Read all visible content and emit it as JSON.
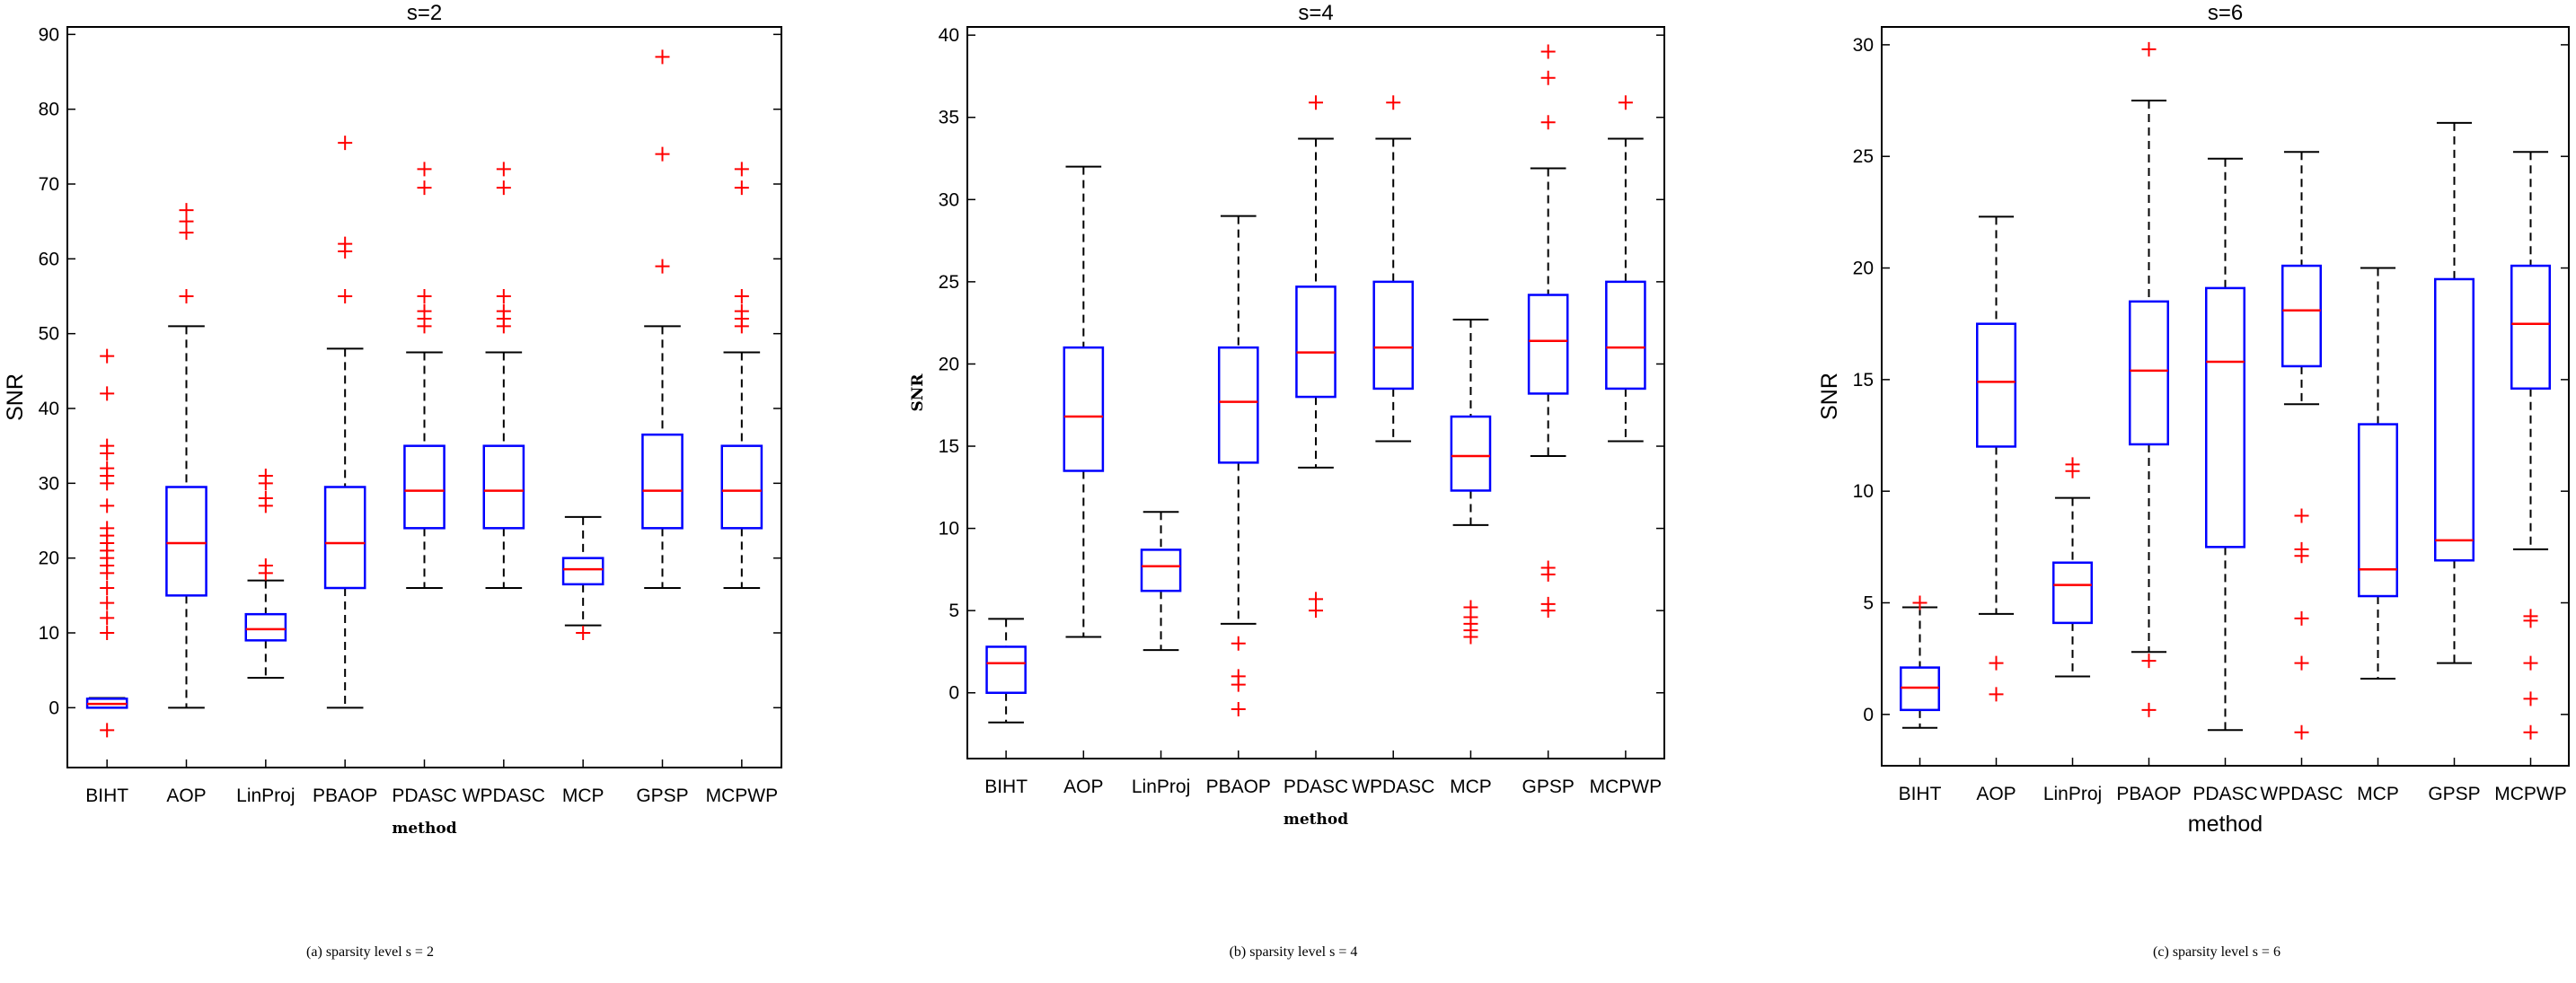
{
  "chart_data": [
    {
      "type": "boxplot",
      "title": "s=2",
      "xlabel": "method",
      "ylabel": "SNR",
      "xlabel_style": "serif",
      "ylabel_style": "sans",
      "ylim": [
        -8,
        91
      ],
      "yticks": [
        0,
        10,
        20,
        30,
        40,
        50,
        60,
        70,
        80,
        90
      ],
      "categories": [
        "BIHT",
        "AOP",
        "LinProj",
        "PBAOP",
        "PDASC",
        "WPDASC",
        "MCP",
        "GPSP",
        "MCPWP"
      ],
      "boxes": [
        {
          "min": 0,
          "q1": 0,
          "median": 0.5,
          "q3": 1.2,
          "max": 1.3,
          "outliers": [
            -3,
            10,
            12,
            14,
            16,
            18,
            19,
            20,
            21,
            22,
            23,
            24,
            27,
            30,
            31,
            32,
            34,
            35,
            42,
            47
          ]
        },
        {
          "min": 0,
          "q1": 15,
          "median": 22,
          "q3": 29.5,
          "max": 51,
          "outliers": [
            55,
            63.5,
            65,
            66.5
          ]
        },
        {
          "min": 4,
          "q1": 9,
          "median": 10.5,
          "q3": 12.5,
          "max": 17,
          "outliers": [
            18,
            19,
            27,
            28,
            30,
            31
          ]
        },
        {
          "min": 0,
          "q1": 16,
          "median": 22,
          "q3": 29.5,
          "max": 48,
          "outliers": [
            55,
            61,
            62,
            75.5
          ]
        },
        {
          "min": 16,
          "q1": 24,
          "median": 29,
          "q3": 35,
          "max": 47.5,
          "outliers": [
            51,
            52,
            53,
            55,
            69.5,
            72
          ]
        },
        {
          "min": 16,
          "q1": 24,
          "median": 29,
          "q3": 35,
          "max": 47.5,
          "outliers": [
            51,
            52,
            53,
            55,
            69.5,
            72
          ]
        },
        {
          "min": 11,
          "q1": 16.5,
          "median": 18.5,
          "q3": 20,
          "max": 25.5,
          "outliers": [
            10
          ]
        },
        {
          "min": 16,
          "q1": 24,
          "median": 29,
          "q3": 36.5,
          "max": 51,
          "outliers": [
            59,
            74,
            87
          ]
        },
        {
          "min": 16,
          "q1": 24,
          "median": 29,
          "q3": 35,
          "max": 47.5,
          "outliers": [
            51,
            52,
            53,
            55,
            69.5,
            72
          ]
        }
      ]
    },
    {
      "type": "boxplot",
      "title": "s=4",
      "xlabel": "method",
      "ylabel": "SNR",
      "xlabel_style": "serif",
      "ylabel_style": "serif",
      "ylim": [
        -4,
        40.5
      ],
      "yticks": [
        0,
        5,
        10,
        15,
        20,
        25,
        30,
        35,
        40
      ],
      "categories": [
        "BIHT",
        "AOP",
        "LinProj",
        "PBAOP",
        "PDASC",
        "WPDASC",
        "MCP",
        "GPSP",
        "MCPWP"
      ],
      "boxes": [
        {
          "min": -1.8,
          "q1": 0,
          "median": 1.8,
          "q3": 2.8,
          "max": 4.5,
          "outliers": []
        },
        {
          "min": 3.4,
          "q1": 13.5,
          "median": 16.8,
          "q3": 21,
          "max": 32,
          "outliers": []
        },
        {
          "min": 2.6,
          "q1": 6.2,
          "median": 7.7,
          "q3": 8.7,
          "max": 11,
          "outliers": []
        },
        {
          "min": 4.2,
          "q1": 14,
          "median": 17.7,
          "q3": 21,
          "max": 29,
          "outliers": [
            -1,
            0.5,
            1,
            3
          ]
        },
        {
          "min": 13.7,
          "q1": 18,
          "median": 20.7,
          "q3": 24.7,
          "max": 33.7,
          "outliers": [
            5,
            5.7,
            35.9
          ]
        },
        {
          "min": 15.3,
          "q1": 18.5,
          "median": 21,
          "q3": 25,
          "max": 33.7,
          "outliers": [
            35.9
          ]
        },
        {
          "min": 10.2,
          "q1": 12.3,
          "median": 14.4,
          "q3": 16.8,
          "max": 22.7,
          "outliers": [
            3.4,
            3.8,
            4.2,
            4.6,
            5.2
          ]
        },
        {
          "min": 14.4,
          "q1": 18.2,
          "median": 21.4,
          "q3": 24.2,
          "max": 31.9,
          "outliers": [
            5,
            5.4,
            7.2,
            7.6,
            34.7,
            37.4,
            39
          ]
        },
        {
          "min": 15.3,
          "q1": 18.5,
          "median": 21,
          "q3": 25,
          "max": 33.7,
          "outliers": [
            35.9
          ]
        }
      ]
    },
    {
      "type": "boxplot",
      "title": "s=6",
      "xlabel": "method",
      "ylabel": "SNR",
      "xlabel_style": "sans",
      "ylabel_style": "sans",
      "ylim": [
        -2.3,
        30.8
      ],
      "yticks": [
        0,
        5,
        10,
        15,
        20,
        25,
        30
      ],
      "categories": [
        "BIHT",
        "AOP",
        "LinProj",
        "PBAOP",
        "PDASC",
        "WPDASC",
        "MCP",
        "GPSP",
        "MCPWP"
      ],
      "boxes": [
        {
          "min": -0.6,
          "q1": 0.2,
          "median": 1.2,
          "q3": 2.1,
          "max": 4.8,
          "outliers": [
            5
          ]
        },
        {
          "min": 4.5,
          "q1": 12,
          "median": 14.9,
          "q3": 17.5,
          "max": 22.3,
          "outliers": [
            0.9,
            2.3
          ]
        },
        {
          "min": 1.7,
          "q1": 4.1,
          "median": 5.8,
          "q3": 6.8,
          "max": 9.7,
          "outliers": [
            10.9,
            11.2
          ]
        },
        {
          "min": 2.8,
          "q1": 12.1,
          "median": 15.4,
          "q3": 18.5,
          "max": 27.5,
          "outliers": [
            0.2,
            2.4,
            29.8
          ]
        },
        {
          "min": -0.7,
          "q1": 7.5,
          "median": 15.8,
          "q3": 19.1,
          "max": 24.9,
          "outliers": []
        },
        {
          "min": 13.9,
          "q1": 15.6,
          "median": 18.1,
          "q3": 20.1,
          "max": 25.2,
          "outliers": [
            -0.8,
            2.3,
            4.3,
            7.1,
            7.4,
            8.9
          ]
        },
        {
          "min": 1.6,
          "q1": 5.3,
          "median": 6.5,
          "q3": 13,
          "max": 20,
          "outliers": []
        },
        {
          "min": 2.3,
          "q1": 6.9,
          "median": 7.8,
          "q3": 19.5,
          "max": 26.5,
          "outliers": []
        },
        {
          "min": 7.4,
          "q1": 14.6,
          "median": 17.5,
          "q3": 20.1,
          "max": 25.2,
          "outliers": [
            -0.8,
            0.7,
            2.3,
            4.2,
            4.4
          ]
        }
      ]
    }
  ],
  "captions": [
    {
      "letter": "(a)",
      "text": " sparsity level ",
      "var": "s",
      "eq": " = 2"
    },
    {
      "letter": "(b)",
      "text": " sparsity level ",
      "var": "s",
      "eq": " = 4"
    },
    {
      "letter": "(c)",
      "text": " sparsity level ",
      "var": "s",
      "eq": " = 6"
    }
  ],
  "colors": {
    "box": "#0000ff",
    "median": "#ff0000",
    "outlier": "#ff0000",
    "whisker": "#000000",
    "frame": "#000000"
  }
}
